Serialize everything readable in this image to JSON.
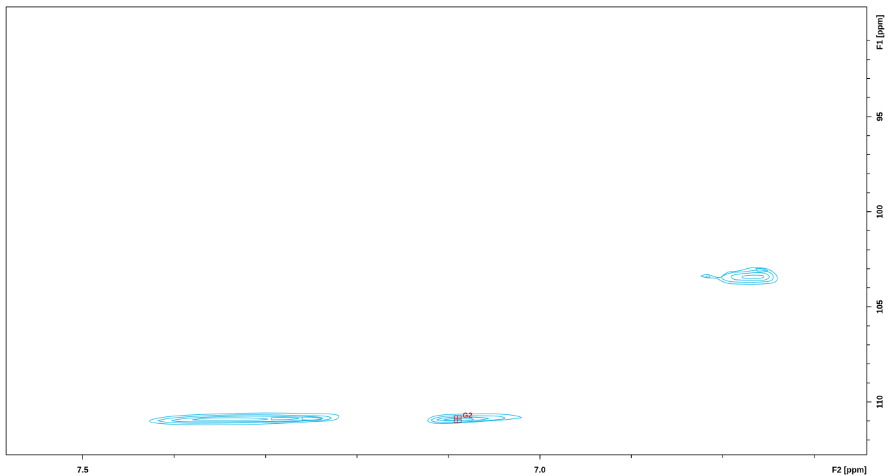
{
  "chart_data": {
    "type": "contour",
    "xlabel": "F2 [ppm]",
    "ylabel": "F1 [ppm]",
    "xlim": [
      7.5,
      6.0
    ],
    "ylim": [
      90,
      110
    ],
    "x_ticks": [
      "7.5",
      "7.0",
      "6.5",
      "6.0"
    ],
    "y_ticks": [
      "95",
      "100",
      "105",
      "110"
    ],
    "x_inverted": true,
    "y_inverted": true,
    "contour_color": "#19b9e8",
    "peak_color": "#d21c1c",
    "peaks": [
      {
        "label": "",
        "x": 7.29,
        "y": 110.9
      },
      {
        "label": "G2",
        "x": 7.09,
        "y": 110.9
      },
      {
        "label": "",
        "x": 6.76,
        "y": 103.5
      }
    ]
  }
}
